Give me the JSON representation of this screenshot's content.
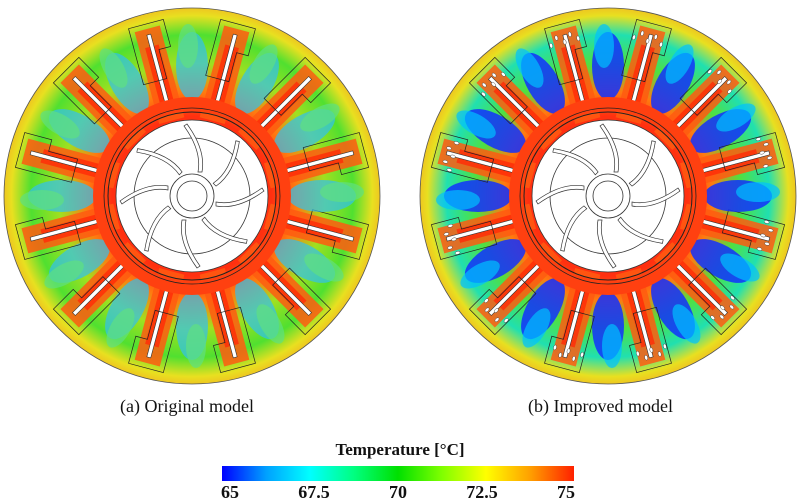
{
  "panels": [
    {
      "caption": "(a) Original model",
      "cooling_holes": false
    },
    {
      "caption": "(b) Improved model",
      "cooling_holes": true
    }
  ],
  "colorbar": {
    "title": "Temperature [°C]",
    "min": 65,
    "max": 75,
    "ticks": [
      "65",
      "67.5",
      "70",
      "72.5",
      "75"
    ],
    "colormap": [
      "#0000ff",
      "#00a0ff",
      "#00ffff",
      "#00ff80",
      "#00e000",
      "#80ff00",
      "#ffff00",
      "#ffa000",
      "#ff2000"
    ]
  }
}
